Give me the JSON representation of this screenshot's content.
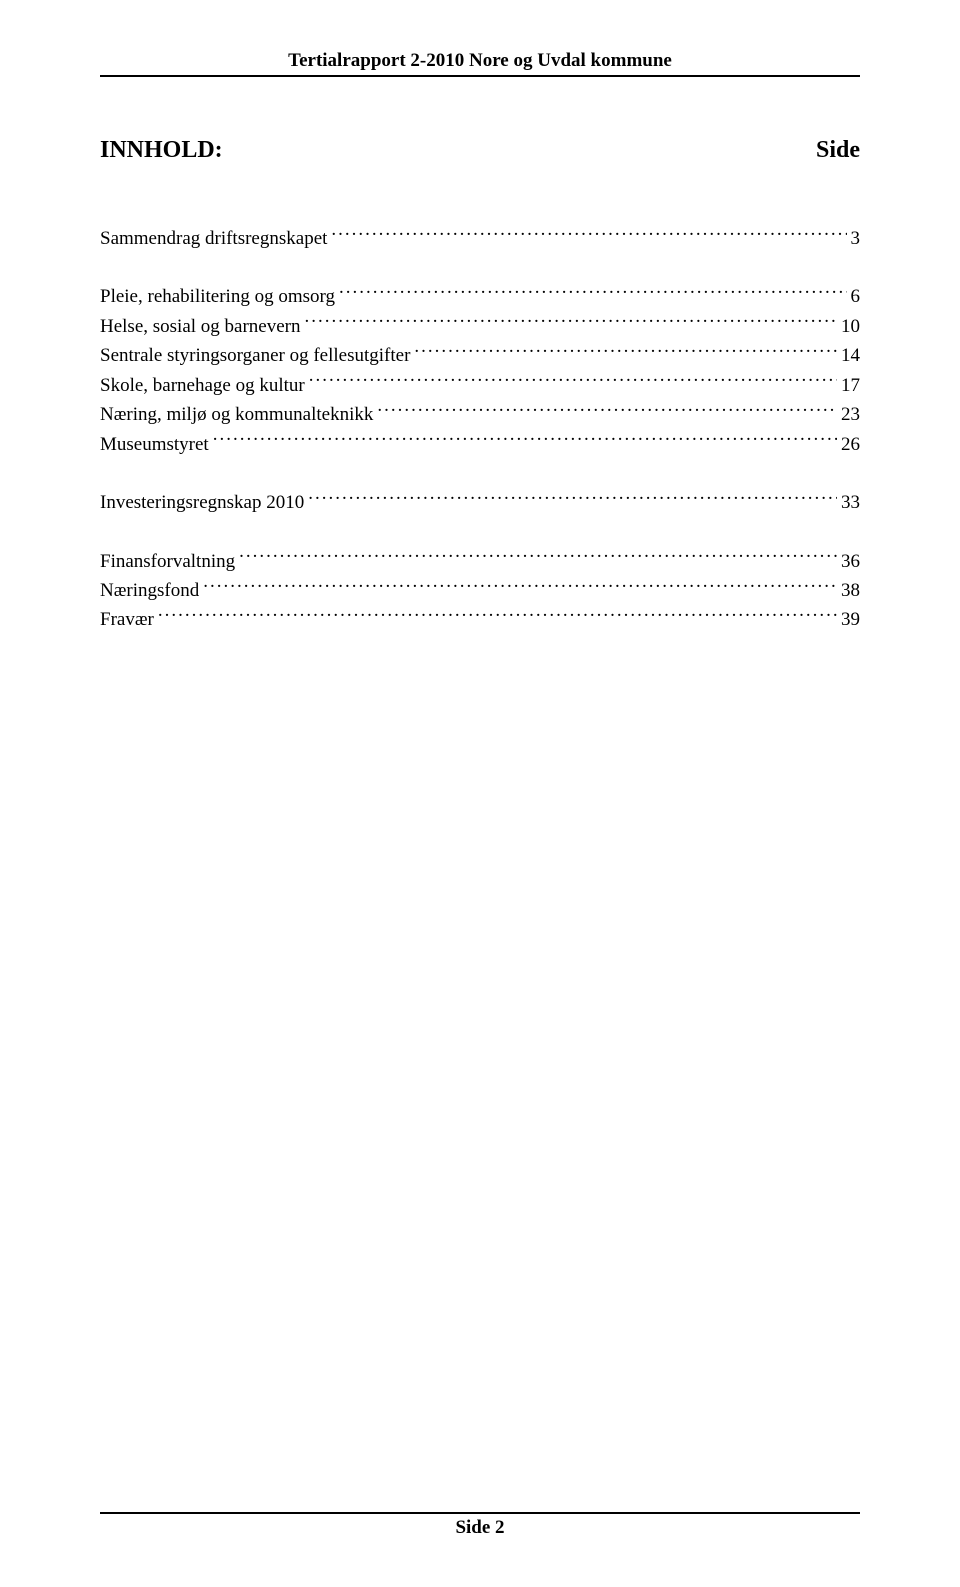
{
  "header": {
    "text": "Tertialrapport  2-2010  Nore og Uvdal kommune"
  },
  "title": {
    "left": "INNHOLD:",
    "right": "Side"
  },
  "toc": {
    "items": [
      {
        "label": "Sammendrag driftsregnskapet",
        "page": "3",
        "gap_before": false
      },
      {
        "label": "Pleie, rehabilitering og omsorg",
        "page": "6",
        "gap_before": true
      },
      {
        "label": "Helse, sosial og barnevern",
        "page": "10",
        "gap_before": false
      },
      {
        "label": "Sentrale styringsorganer og fellesutgifter",
        "page": "14",
        "gap_before": false
      },
      {
        "label": "Skole, barnehage og kultur",
        "page": "17",
        "gap_before": false
      },
      {
        "label": "Næring, miljø og kommunalteknikk",
        "page": "23",
        "gap_before": false
      },
      {
        "label": "Museumstyret",
        "page": "26",
        "gap_before": false
      },
      {
        "label": "Investeringsregnskap 2010",
        "page": "33",
        "gap_before": true
      },
      {
        "label": "Finansforvaltning",
        "page": "36",
        "gap_before": true
      },
      {
        "label": "Næringsfond",
        "page": "38",
        "gap_before": false
      },
      {
        "label": "Fravær",
        "page": "39",
        "gap_before": false
      }
    ]
  },
  "footer": {
    "text": "Side 2"
  }
}
